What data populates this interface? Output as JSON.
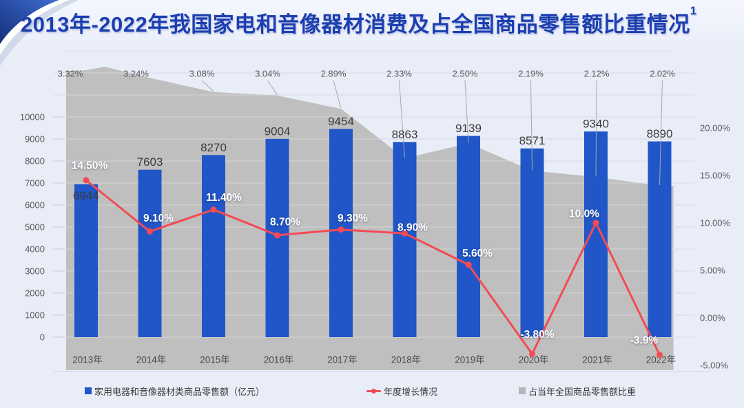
{
  "title": {
    "text": "2013年-2022年我国家电和音像器材消费及占全国商品零售额比重情况",
    "superscript": "1"
  },
  "legend": {
    "items": [
      {
        "label": "家用电器和音像器材类商品零售额（亿元）",
        "swatch": "blue-square"
      },
      {
        "label": "年度增长情况",
        "swatch": "red-line-marker"
      },
      {
        "label": "占当年全国商品零售额比重",
        "swatch": "gray-square"
      }
    ]
  },
  "colors": {
    "bar": "#2056c7",
    "growth_line": "#f44a55",
    "share_area": "#bfbfbf",
    "title_text": "#1c3eb0",
    "axis_text": "#595959",
    "bar_label_text": "#3c3c3c",
    "growth_label_text": "#ffffff",
    "background": "#e9edf8"
  },
  "chart_data": {
    "type": "combo",
    "title": "2013年-2022年我国家电和音像器材消费及占全国商品零售额比重情况",
    "categories": [
      "2013年",
      "2014年",
      "2015年",
      "2016年",
      "2017年",
      "2018年",
      "2019年",
      "2020年",
      "2021年",
      "2022年"
    ],
    "series": [
      {
        "name": "家用电器和音像器材类商品零售额（亿元）",
        "type": "bar",
        "axis": "left",
        "values": [
          6944,
          7603,
          8270,
          9004,
          9454,
          8863,
          9139,
          8571,
          9340,
          8890
        ],
        "labels": [
          "6944",
          "7603",
          "8270",
          "9004",
          "9454",
          "8863",
          "9139",
          "8571",
          "9340",
          "8890"
        ]
      },
      {
        "name": "年度增长情况",
        "type": "line",
        "axis": "right",
        "values": [
          14.5,
          9.1,
          11.4,
          8.7,
          9.3,
          8.9,
          5.6,
          -3.8,
          10.0,
          -3.9
        ],
        "labels": [
          "14.50%",
          "9.10%",
          "11.40%",
          "8.70%",
          "9.30%",
          "8.90%",
          "5.60%",
          "-3.80%",
          "10.0%",
          "-3.9%"
        ]
      },
      {
        "name": "占当年全国商品零售额比重",
        "type": "area",
        "axis": "hidden",
        "values": [
          3.32,
          3.24,
          3.08,
          3.04,
          2.89,
          2.33,
          2.5,
          2.19,
          2.12,
          2.02
        ],
        "labels": [
          "3.32%",
          "3.24%",
          "3.08%",
          "3.04%",
          "2.89%",
          "2.33%",
          "2.50%",
          "2.19%",
          "2.12%",
          "2.02%"
        ]
      }
    ],
    "left_axis": {
      "min": 0,
      "max": 13000,
      "grid_step": 1000,
      "label_max": 10000,
      "label_step": 1000
    },
    "right_axis": {
      "labels": [
        "20.00%",
        "15.00%",
        "10.00%",
        "5.00%",
        "0.00%",
        "-5.00%"
      ],
      "values": [
        20,
        15,
        10,
        5,
        0,
        -5
      ],
      "min": -5,
      "max": 20
    },
    "grid": true,
    "legend_position": "bottom"
  }
}
